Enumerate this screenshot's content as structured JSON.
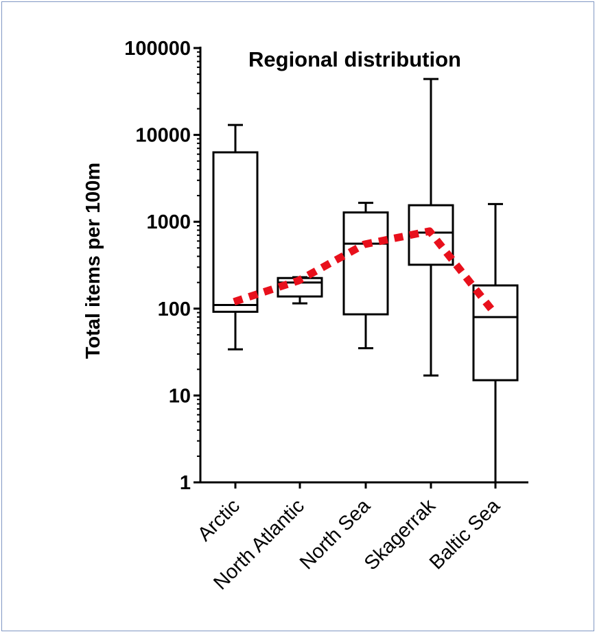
{
  "chart_data": {
    "type": "box",
    "title": "Regional distribution",
    "xlabel": "",
    "ylabel": "Total items per 100m",
    "yscale": "log",
    "ylim": [
      1,
      100000
    ],
    "yticks": [
      {
        "value": 1,
        "label": "1"
      },
      {
        "value": 10,
        "label": "10"
      },
      {
        "value": 100,
        "label": "100"
      },
      {
        "value": 1000,
        "label": "1000"
      },
      {
        "value": 10000,
        "label": "10000"
      },
      {
        "value": 100000,
        "label": "100000"
      }
    ],
    "categories": [
      "Arctic",
      "North Atlantic",
      "North Sea",
      "Skagerrak",
      "Baltic Sea"
    ],
    "boxes": [
      {
        "category": "Arctic",
        "min": 34,
        "q1": 92,
        "median": 110,
        "q3": 6300,
        "max": 13000
      },
      {
        "category": "North Atlantic",
        "min": 115,
        "q1": 138,
        "median": 200,
        "q3": 225,
        "max": 230
      },
      {
        "category": "North Sea",
        "min": 35,
        "q1": 86,
        "median": 560,
        "q3": 1280,
        "max": 1650
      },
      {
        "category": "Skagerrak",
        "min": 17,
        "q1": 320,
        "median": 750,
        "q3": 1550,
        "max": 44000
      },
      {
        "category": "Baltic Sea",
        "min": 1,
        "q1": 15,
        "median": 80,
        "q3": 185,
        "max": 1600
      }
    ],
    "trend_line": {
      "style": "dotted",
      "color": "#e8101c",
      "points": [
        {
          "category": "Arctic",
          "y": 120
        },
        {
          "category": "North Atlantic",
          "y": 210
        },
        {
          "category": "North Sea",
          "y": 550
        },
        {
          "category": "Skagerrak",
          "y": 780
        },
        {
          "category": "Baltic Sea",
          "y": 90
        }
      ]
    },
    "grid": false,
    "legend": "none",
    "box_color": "#000000"
  }
}
